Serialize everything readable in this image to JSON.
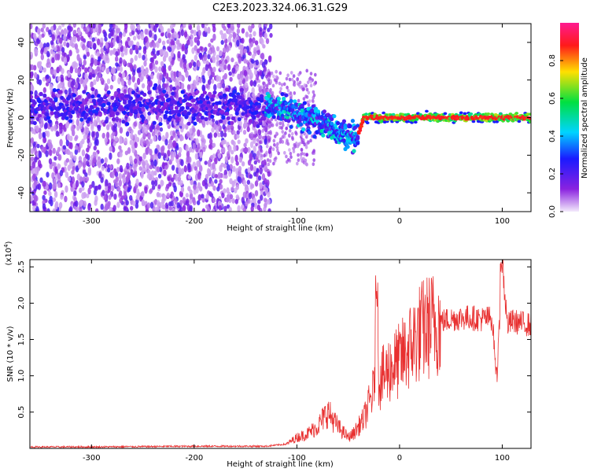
{
  "title": "C2E3.2023.324.06.31.G29",
  "chart_data": [
    {
      "type": "heatmap",
      "ylabel": "Frequency (Hz)",
      "xlabel": "Height of straight line (km)",
      "xlim": [
        -360,
        128
      ],
      "ylim": [
        -50,
        50
      ],
      "xticks": [
        -300,
        -200,
        -100,
        0,
        100
      ],
      "yticks": [
        -40,
        -20,
        0,
        20,
        40
      ],
      "colorbar": {
        "label": "Normalized spectral amplitude",
        "range": [
          0,
          1
        ],
        "ticks": [
          0.0,
          0.2,
          0.4,
          0.6,
          0.8
        ],
        "colormap": [
          "#f3eafb",
          "#8a22e0",
          "#1a1aff",
          "#00d4ff",
          "#00e040",
          "#ffe000",
          "#ff1a1a",
          "#ff1a90"
        ]
      },
      "ridge_frequency": [
        {
          "x": -300,
          "y": 6
        },
        {
          "x": -200,
          "y": 6
        },
        {
          "x": -130,
          "y": 6
        },
        {
          "x": -110,
          "y": 4
        },
        {
          "x": -90,
          "y": 0
        },
        {
          "x": -70,
          "y": -4
        },
        {
          "x": -50,
          "y": -10
        },
        {
          "x": -40,
          "y": -9
        },
        {
          "x": -35,
          "y": 0
        },
        {
          "x": -20,
          "y": 0
        },
        {
          "x": 0,
          "y": 0
        },
        {
          "x": 128,
          "y": 0
        }
      ]
    },
    {
      "type": "line",
      "ylabel": "SNR (10 * v/v)",
      "xlabel": "Height of straight line (km)",
      "scale_label": "(x10",
      "scale_exp": "4",
      "scale_close": ")",
      "xlim": [
        -360,
        128
      ],
      "ylim": [
        0,
        2.6
      ],
      "xticks": [
        -300,
        -200,
        -100,
        0,
        100
      ],
      "yticks": [
        0.5,
        1.0,
        1.5,
        2.0,
        2.5
      ],
      "series": [
        {
          "color": "#e83030",
          "x": [
            -360,
            -300,
            -200,
            -130,
            -110,
            -100,
            -90,
            -80,
            -70,
            -60,
            -50,
            -45,
            -40,
            -35,
            -30,
            -25,
            -22,
            -20,
            -15,
            -10,
            0,
            10,
            20,
            30,
            40,
            50,
            60,
            70,
            80,
            90,
            95,
            100,
            105,
            110,
            128
          ],
          "y": [
            0.02,
            0.02,
            0.03,
            0.03,
            0.06,
            0.15,
            0.2,
            0.3,
            0.5,
            0.3,
            0.15,
            0.2,
            0.3,
            0.4,
            0.6,
            0.8,
            2.3,
            0.9,
            1.0,
            1.1,
            1.2,
            1.4,
            1.6,
            1.7,
            1.75,
            1.78,
            1.8,
            1.8,
            1.78,
            1.8,
            1.0,
            2.55,
            1.7,
            1.75,
            1.7
          ]
        }
      ]
    }
  ]
}
